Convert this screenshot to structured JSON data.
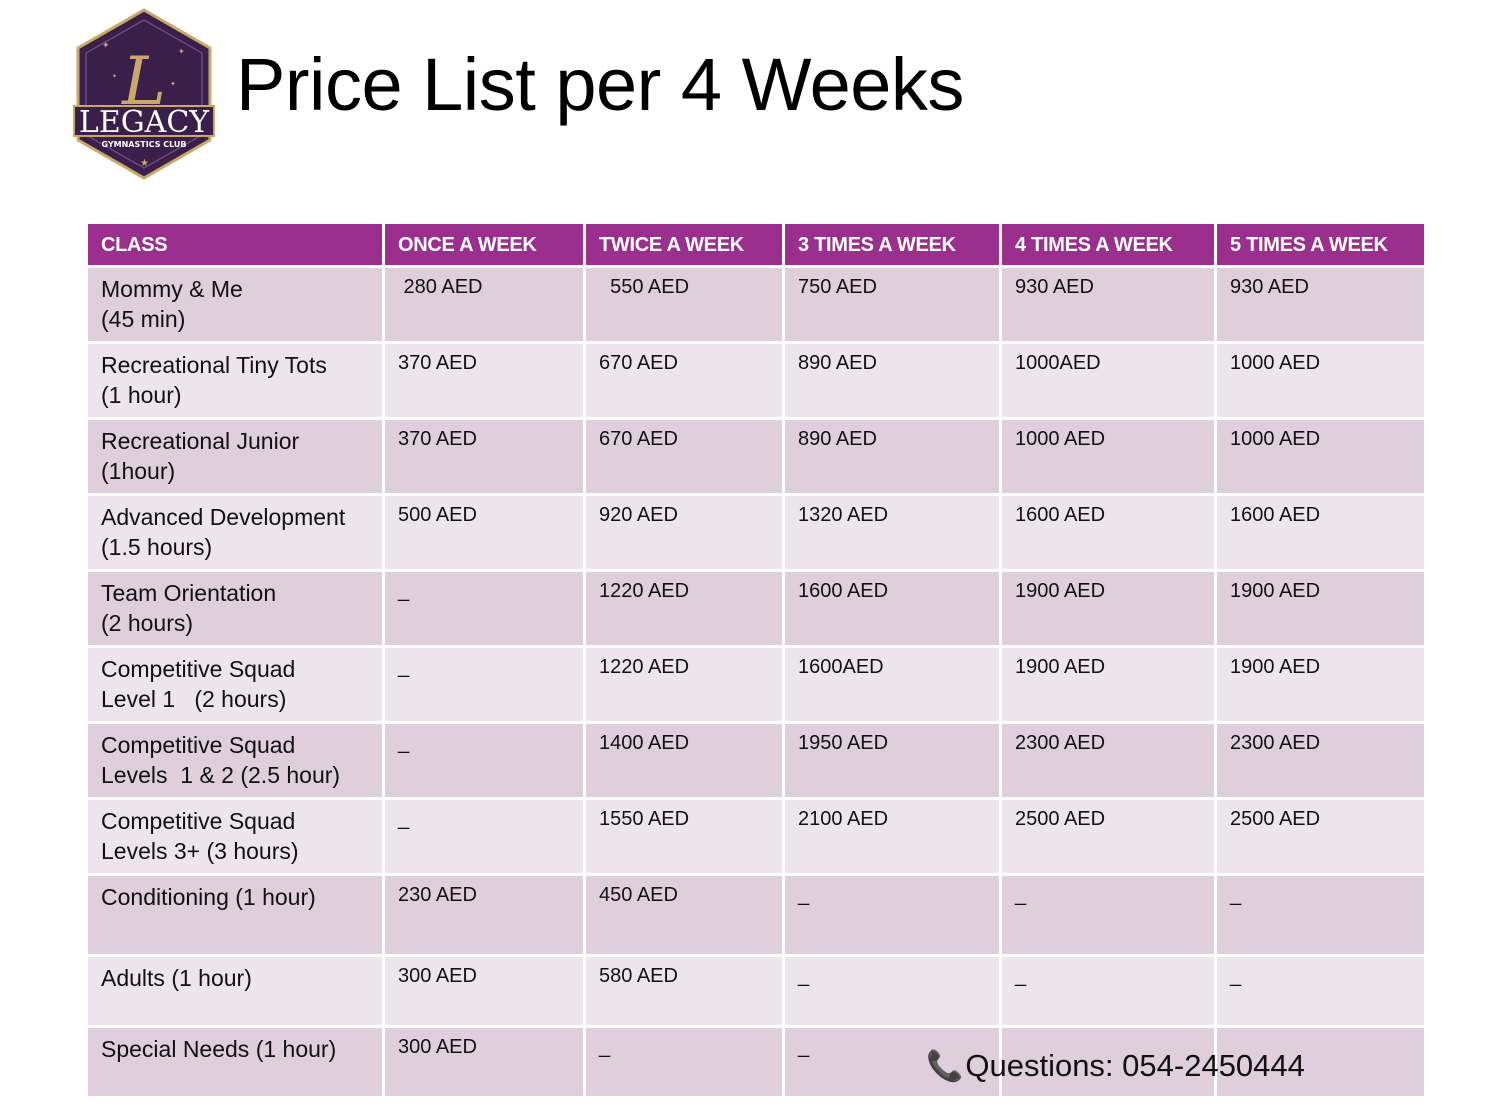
{
  "title": "Price List per 4 Weeks",
  "logo": {
    "name": "LEGACY",
    "subtitle": "GYMNASTICS CLUB",
    "colors": {
      "badge": "#3a1f4a",
      "gold": "#c9a86a"
    }
  },
  "table": {
    "header_color": "#9b2f8d",
    "headers": [
      "CLASS",
      "ONCE A WEEK",
      "TWICE A WEEK",
      "3 TIMES A WEEK",
      "4 TIMES A WEEK",
      "5 TIMES A WEEK"
    ],
    "rows": [
      [
        "Mommy & Me\n(45 min)",
        " 280 AED",
        "  550 AED",
        "750 AED",
        "930 AED",
        "930 AED"
      ],
      [
        "Recreational Tiny Tots\n(1 hour)",
        "370 AED",
        "670 AED",
        "890 AED",
        "1000AED",
        "1000 AED"
      ],
      [
        "Recreational Junior\n(1hour)",
        "370 AED",
        "670 AED",
        "890 AED",
        "1000 AED",
        "1000 AED"
      ],
      [
        "Advanced Development\n(1.5 hours)",
        "500 AED",
        "920 AED",
        "1320 AED",
        "1600 AED",
        "1600 AED"
      ],
      [
        "Team Orientation\n(2 hours)",
        "_",
        "1220 AED",
        "1600 AED",
        "1900 AED",
        "1900 AED"
      ],
      [
        "Competitive Squad\nLevel 1   (2 hours)",
        "_",
        "1220 AED",
        "1600AED",
        "1900 AED",
        "1900 AED"
      ],
      [
        "Competitive Squad\nLevels  1 & 2 (2.5 hour)",
        "_",
        "1400 AED",
        "1950 AED",
        "2300 AED",
        "2300 AED"
      ],
      [
        "Competitive Squad\nLevels 3+ (3 hours)",
        "_",
        "1550 AED",
        "2100 AED",
        "2500 AED",
        "2500 AED"
      ],
      [
        "Conditioning (1 hour)",
        "230 AED",
        "450 AED",
        "_",
        "_",
        "_"
      ],
      [
        "Adults (1 hour)",
        "300 AED",
        "580 AED",
        "_",
        "_",
        "_"
      ],
      [
        "Special Needs (1 hour)",
        "300 AED",
        "_",
        "_",
        "",
        ""
      ]
    ]
  },
  "contact": {
    "icon": "phone-icon",
    "text": "Questions: 054-2450444"
  }
}
